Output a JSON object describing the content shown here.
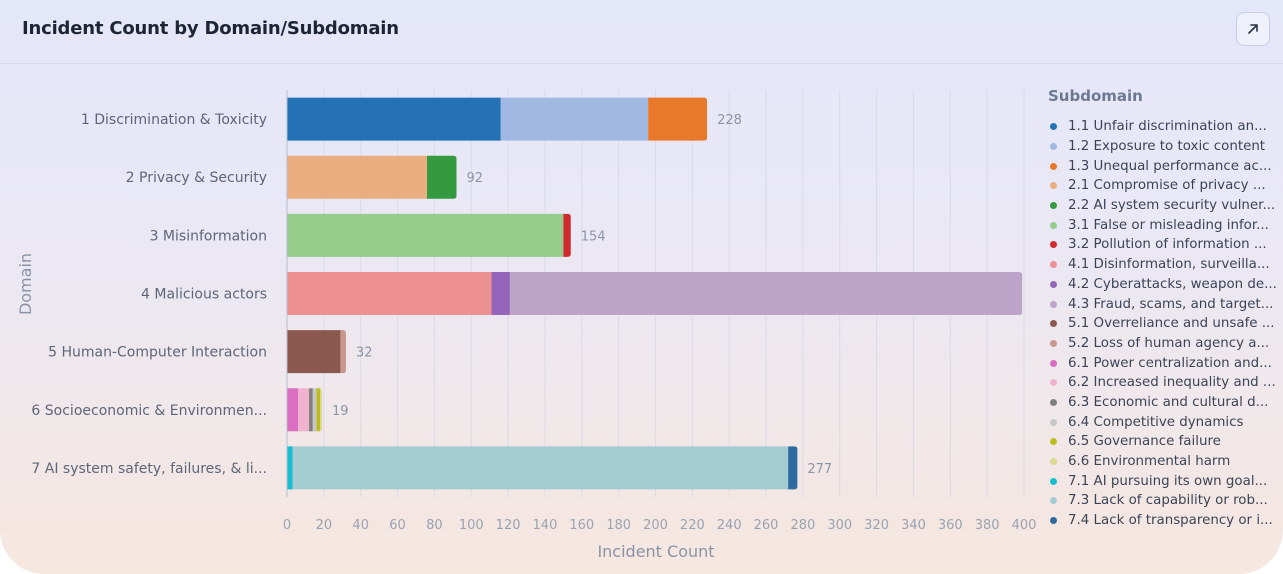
{
  "header": {
    "title": "Incident Count by Domain/Subdomain",
    "expand_icon": "arrow-up-right-icon"
  },
  "legend": {
    "title": "Subdomain",
    "items": [
      {
        "label": "1.1 Unfair discrimination an...",
        "color": "#2471b5"
      },
      {
        "label": "1.2 Exposure to toxic content",
        "color": "#a1b8e3"
      },
      {
        "label": "1.3 Unequal performance ac...",
        "color": "#e8782a"
      },
      {
        "label": "2.1 Compromise of privacy ...",
        "color": "#e9ad80"
      },
      {
        "label": "2.2 AI system security vulner...",
        "color": "#349a3f"
      },
      {
        "label": "3.1 False or misleading infor...",
        "color": "#96cc8a"
      },
      {
        "label": "3.2 Pollution of information ...",
        "color": "#d02a2f"
      },
      {
        "label": "4.1 Disinformation, surveilla...",
        "color": "#ed9091"
      },
      {
        "label": "4.2 Cyberattacks, weapon de...",
        "color": "#9565b9"
      },
      {
        "label": "4.3 Fraud, scams, and target...",
        "color": "#bea4c9"
      },
      {
        "label": "5.1 Overreliance and unsafe ...",
        "color": "#8b584f"
      },
      {
        "label": "5.2 Loss of human agency a...",
        "color": "#c9968e"
      },
      {
        "label": "6.1 Power centralization and...",
        "color": "#da6ec0"
      },
      {
        "label": "6.2 Increased inequality and ...",
        "color": "#f0b2cf"
      },
      {
        "label": "6.3 Economic and cultural d...",
        "color": "#7f7f7f"
      },
      {
        "label": "6.4 Competitive dynamics",
        "color": "#c7c7c7"
      },
      {
        "label": "6.5 Governance failure",
        "color": "#bcbd22"
      },
      {
        "label": "6.6 Environmental harm",
        "color": "#dbd88d"
      },
      {
        "label": "7.1 AI pursuing its own goal...",
        "color": "#17becf"
      },
      {
        "label": "7.3 Lack of capability or rob...",
        "color": "#a3cbd1"
      },
      {
        "label": "7.4 Lack of transparency or i...",
        "color": "#2d6aa0"
      }
    ]
  },
  "chart_data": {
    "type": "bar",
    "orientation": "horizontal",
    "stacked": true,
    "xlabel": "Incident Count",
    "ylabel": "Domain",
    "xlim": [
      0,
      400
    ],
    "xticks": [
      0,
      20,
      40,
      60,
      80,
      100,
      120,
      140,
      160,
      180,
      200,
      220,
      240,
      260,
      280,
      300,
      320,
      340,
      360,
      380,
      400
    ],
    "grid": true,
    "legend_position": "right",
    "categories": [
      "1 Discrimination & Toxicity",
      "2 Privacy & Security",
      "3 Misinformation",
      "4 Malicious actors",
      "5 Human-Computer Interaction",
      "6 Socioeconomic & Environmen...",
      "7 AI system safety, failures, & li..."
    ],
    "totals": [
      "228",
      "92",
      "154",
      "",
      "32",
      "19",
      "277"
    ],
    "segments": [
      [
        {
          "legend": 0,
          "value": 116
        },
        {
          "legend": 1,
          "value": 80
        },
        {
          "legend": 2,
          "value": 32
        }
      ],
      [
        {
          "legend": 3,
          "value": 76
        },
        {
          "legend": 4,
          "value": 16
        }
      ],
      [
        {
          "legend": 5,
          "value": 150
        },
        {
          "legend": 6,
          "value": 4
        }
      ],
      [
        {
          "legend": 7,
          "value": 111
        },
        {
          "legend": 8,
          "value": 10
        },
        {
          "legend": 9,
          "value": 278
        }
      ],
      [
        {
          "legend": 10,
          "value": 29
        },
        {
          "legend": 11,
          "value": 3
        }
      ],
      [
        {
          "legend": 12,
          "value": 6
        },
        {
          "legend": 13,
          "value": 6
        },
        {
          "legend": 14,
          "value": 2
        },
        {
          "legend": 15,
          "value": 2
        },
        {
          "legend": 16,
          "value": 2
        },
        {
          "legend": 17,
          "value": 1
        }
      ],
      [
        {
          "legend": 18,
          "value": 3
        },
        {
          "legend": 19,
          "value": 269
        },
        {
          "legend": 20,
          "value": 5
        }
      ]
    ]
  }
}
